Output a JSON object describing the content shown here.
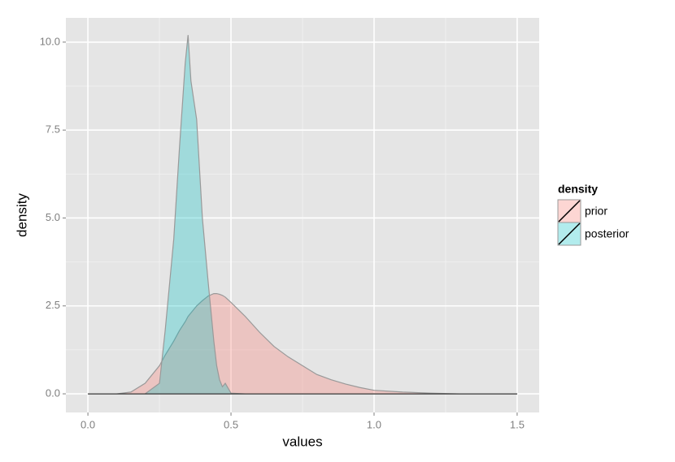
{
  "chart_data": {
    "type": "area",
    "x_label": "values",
    "y_label": "density",
    "x": [
      0,
      0.1,
      0.15,
      0.2,
      0.25,
      0.27,
      0.3,
      0.32,
      0.34,
      0.35,
      0.36,
      0.38,
      0.4,
      0.42,
      0.44,
      0.45,
      0.46,
      0.47,
      0.48,
      0.5,
      0.55,
      0.6,
      0.65,
      0.7,
      0.75,
      0.8,
      0.85,
      0.9,
      0.95,
      1.0,
      1.1,
      1.2,
      1.3,
      1.5
    ],
    "series": [
      {
        "name": "prior",
        "color": "#F8766D",
        "values": [
          0,
          0,
          0.05,
          0.3,
          0.8,
          1.1,
          1.5,
          1.8,
          2.05,
          2.2,
          2.3,
          2.5,
          2.65,
          2.78,
          2.85,
          2.85,
          2.83,
          2.8,
          2.75,
          2.6,
          2.2,
          1.75,
          1.35,
          1.05,
          0.8,
          0.55,
          0.4,
          0.28,
          0.18,
          0.1,
          0.05,
          0.02,
          0,
          0
        ]
      },
      {
        "name": "posterior",
        "color": "#00BFC4",
        "values": [
          0,
          0,
          0,
          0,
          0.3,
          1.8,
          4.4,
          7,
          9.4,
          10.2,
          8.9,
          7.8,
          5,
          3.2,
          1.5,
          0.8,
          0.4,
          0.2,
          0.3,
          0.02,
          0,
          0,
          0,
          0,
          0,
          0,
          0,
          0,
          0,
          0,
          0,
          0,
          0,
          0
        ]
      }
    ],
    "legend_title": "density",
    "legend": "right",
    "xlim": [
      -0.077,
      1.577
    ],
    "ylim": [
      -0.53,
      10.69
    ],
    "xticks": [
      {
        "value": 0,
        "label": "0.0"
      },
      0.5,
      {
        "value": 1,
        "label": "1.0"
      },
      1.5
    ],
    "yticks": [
      {
        "value": 0,
        "label": "0.0"
      },
      2.5,
      {
        "value": 5,
        "label": "5.0"
      },
      7.5,
      {
        "value": 10,
        "label": "10.0"
      }
    ],
    "x_minor_ticks": [
      0.25,
      0.75,
      1.25
    ],
    "y_minor_ticks": [
      1.25,
      3.75,
      6.25,
      8.75
    ],
    "grid": true
  }
}
